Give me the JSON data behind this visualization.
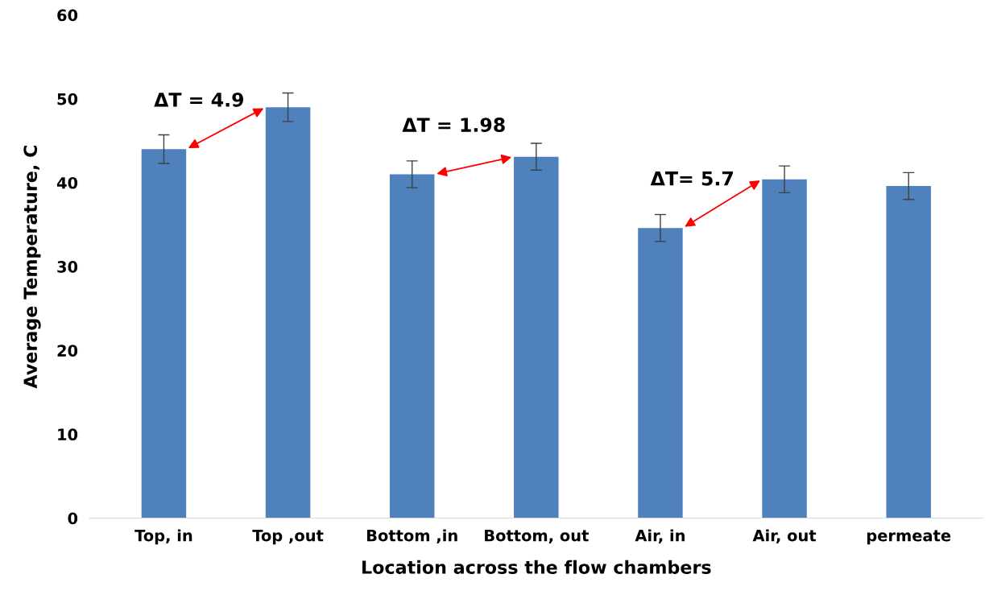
{
  "chart_data": {
    "type": "bar",
    "xlabel": "Location across the flow chambers",
    "ylabel": "Average Temperature, C",
    "categories": [
      "Top, in",
      "Top ,out",
      "Bottom ,in",
      "Bottom, out",
      "Air, in",
      "Air, out",
      "permeate"
    ],
    "values": [
      44,
      49,
      41,
      43.1,
      34.6,
      40.4,
      39.6
    ],
    "errors": [
      1.7,
      1.7,
      1.6,
      1.6,
      1.6,
      1.6,
      1.6
    ],
    "color": "#4f81bd",
    "ylim": [
      0,
      60
    ],
    "yticks": [
      0,
      10,
      20,
      30,
      40,
      50,
      60
    ],
    "grid": false,
    "annotations": [
      "ΔT = 4.9",
      "ΔT = 1.98",
      "ΔT= 5.7"
    ]
  }
}
